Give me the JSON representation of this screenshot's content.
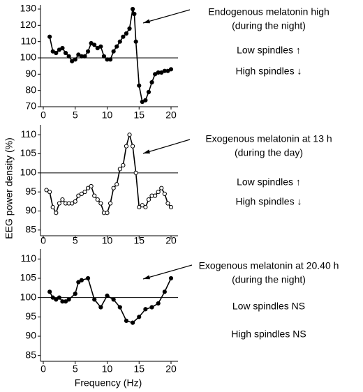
{
  "y_label": "EEG power density (%)",
  "x_label": "Frequency (Hz)",
  "chart_data": [
    {
      "type": "line",
      "color": "#000000",
      "marker_fill": "#000000",
      "hline": 100,
      "x": [
        1,
        1.5,
        2,
        2.5,
        3,
        3.5,
        4,
        4.5,
        5,
        5.5,
        6,
        6.5,
        7,
        7.5,
        8,
        8.5,
        9,
        9.5,
        10,
        10.5,
        11,
        11.5,
        12,
        12.5,
        13,
        13.5,
        14,
        14.25,
        14.5,
        15,
        15.5,
        16,
        16.5,
        17,
        17.5,
        18,
        18.5,
        19,
        19.5,
        20
      ],
      "values": [
        113,
        104,
        103,
        105,
        106,
        103,
        101,
        98,
        99,
        102,
        101,
        101,
        104,
        109,
        108,
        106,
        107,
        101,
        99,
        99,
        104,
        107,
        110,
        113,
        115,
        118,
        130,
        127,
        110,
        83,
        73,
        74,
        79,
        85,
        90,
        91,
        91,
        92,
        92,
        93
      ],
      "xlim": [
        0,
        21
      ],
      "xticks": [
        0,
        5,
        10,
        15,
        20
      ],
      "ylim": [
        70,
        130
      ],
      "yticks": [
        70,
        80,
        90,
        100,
        110,
        120,
        130
      ],
      "annotations": [
        "Endogenous melatonin high",
        "(during the night)",
        "Low spindles ↑",
        "High spindles ↓"
      ]
    },
    {
      "type": "line",
      "color": "#000000",
      "marker_fill": "#ffffff",
      "hline": 100,
      "x": [
        0.5,
        1,
        1.5,
        2,
        2.5,
        3,
        3.5,
        4,
        4.5,
        5,
        5.5,
        6,
        6.5,
        7,
        7.5,
        8,
        8.5,
        9,
        9.5,
        10,
        10.5,
        11,
        11.5,
        12,
        12.5,
        13,
        13.5,
        14,
        14.5,
        15,
        15.5,
        16,
        16.5,
        17,
        17.5,
        18,
        18.5,
        19,
        19.5,
        20
      ],
      "values": [
        95.5,
        95,
        91,
        89.5,
        92,
        93,
        92,
        92,
        92,
        92.5,
        94,
        94.5,
        95,
        96,
        96.5,
        94,
        93,
        92,
        89.5,
        89.5,
        92,
        96,
        97,
        101,
        102,
        107,
        110,
        107,
        100,
        91,
        91.5,
        91,
        93,
        94,
        94,
        95,
        96,
        94.5,
        92,
        91
      ],
      "xlim": [
        0,
        21
      ],
      "xticks": [
        0,
        5,
        10,
        15,
        20
      ],
      "ylim": [
        83.5,
        111.5
      ],
      "yticks": [
        85,
        90,
        95,
        100,
        105,
        110
      ],
      "annotations": [
        "Exogenous melatonin at 13 h",
        "(during the day)",
        "Low spindles ↑",
        "High spindles ↓"
      ]
    },
    {
      "type": "line",
      "color": "#000000",
      "marker_fill": "#000000",
      "hline": 100,
      "x": [
        1,
        1.5,
        2,
        2.5,
        3,
        3.5,
        4,
        5,
        5.5,
        6,
        7,
        8,
        9,
        10,
        11,
        12,
        13,
        14,
        15,
        16,
        17,
        18,
        19,
        20
      ],
      "values": [
        101.5,
        100,
        99.5,
        100,
        99,
        99,
        99.5,
        101,
        104,
        104.5,
        105,
        99.5,
        97.5,
        100.5,
        99.5,
        97.5,
        94,
        93.5,
        95,
        97,
        97.5,
        98.5,
        101.5,
        105
      ],
      "xlim": [
        0,
        21
      ],
      "xticks": [
        0,
        5,
        10,
        15,
        20
      ],
      "ylim": [
        83.5,
        111.5
      ],
      "yticks": [
        85,
        90,
        95,
        100,
        105,
        110
      ],
      "annotations": [
        "Exogenous melatonin at 20.40 h",
        "(during the night)",
        "Low spindles NS",
        "High spindles NS"
      ]
    }
  ]
}
